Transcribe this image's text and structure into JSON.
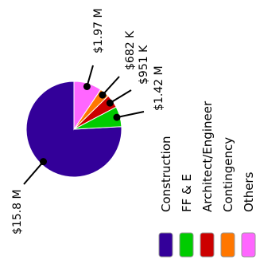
{
  "chart_data": {
    "type": "pie",
    "title": "",
    "categories": [
      "Construction",
      "FF & E",
      "Architect/Engineer",
      "Contingency",
      "Others"
    ],
    "values": [
      15.8,
      1.42,
      0.951,
      0.682,
      1.97
    ],
    "value_labels": [
      "$15.8 M",
      "$1.42 M",
      "$951 K",
      "$682 K",
      "$1.97 M"
    ],
    "colors": [
      "#330099",
      "#00cc00",
      "#cc0000",
      "#ff7700",
      "#ff66ff"
    ],
    "legend_placement": "bottom",
    "text_orientation": "rotated-90-ccw"
  }
}
